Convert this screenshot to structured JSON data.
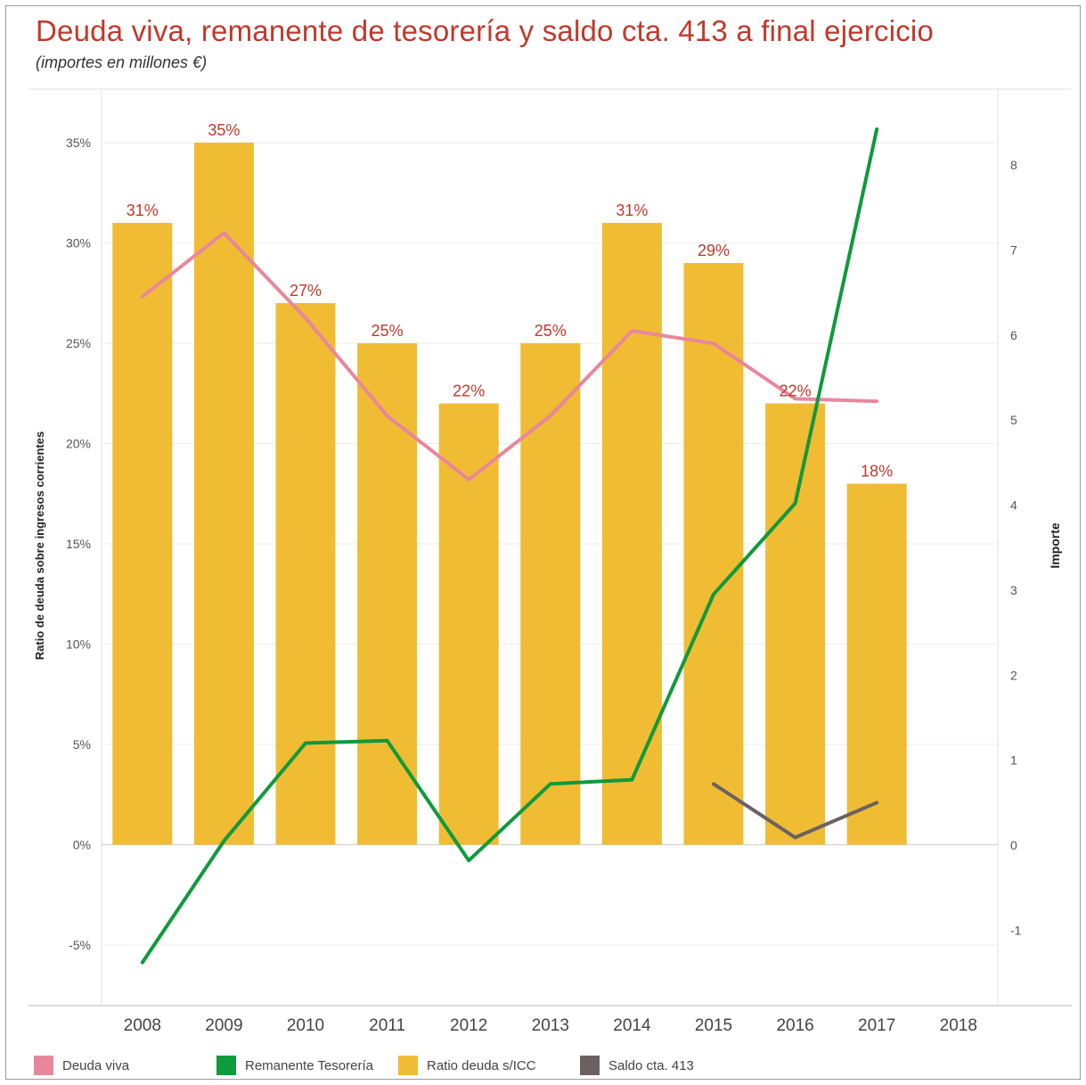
{
  "title": "Deuda viva, remanente de tesorería y saldo cta. 413  a final ejercicio",
  "subtitle": "(importes en millones €)",
  "colors": {
    "bars": "#f0bc33",
    "deuda_viva": "#e8879c",
    "remanente": "#0f9a3c",
    "saldo": "#6b6163",
    "label_red": "#c0392b"
  },
  "legend": [
    {
      "label": "Deuda viva",
      "color": "#e8879c"
    },
    {
      "label": "Remanente Tesorería",
      "color": "#0f9a3c"
    },
    {
      "label": "Ratio deuda s/ICC",
      "color": "#f0bc33"
    },
    {
      "label": "Saldo cta. 413",
      "color": "#6b6163"
    }
  ],
  "chart_data": {
    "type": "bar",
    "categories": [
      "2008",
      "2009",
      "2010",
      "2011",
      "2012",
      "2013",
      "2014",
      "2015",
      "2016",
      "2017",
      "2018"
    ],
    "ylabel_left": "Ratio de deuda sobre ingresos corrientes",
    "ylabel_right": "Importe",
    "left_axis": {
      "ylim": [
        -8,
        37
      ],
      "ticks": [
        -5,
        0,
        5,
        10,
        15,
        20,
        25,
        30,
        35
      ],
      "tick_labels": [
        "-5%",
        "0%",
        "5%",
        "10%",
        "15%",
        "20%",
        "25%",
        "30%",
        "35%"
      ]
    },
    "right_axis": {
      "ylim": [
        -1.9,
        8.7
      ],
      "ticks": [
        -1,
        0,
        1,
        2,
        3,
        4,
        5,
        6,
        7,
        8
      ],
      "tick_labels": [
        "-1",
        "0",
        "1",
        "2",
        "3",
        "4",
        "5",
        "6",
        "7",
        "8"
      ]
    },
    "bars": {
      "name": "Ratio deuda s/ICC",
      "axis": "left",
      "values": [
        31,
        35,
        27,
        25,
        22,
        25,
        31,
        29,
        22,
        18,
        null
      ],
      "labels": [
        "31%",
        "35%",
        "27%",
        "25%",
        "22%",
        "25%",
        "31%",
        "29%",
        "22%",
        "18%",
        ""
      ]
    },
    "series": [
      {
        "name": "Deuda viva",
        "axis": "right",
        "values": [
          6.45,
          7.2,
          6.2,
          5.05,
          4.3,
          5.05,
          6.05,
          5.9,
          5.25,
          5.22,
          null
        ]
      },
      {
        "name": "Remanente Tesorería",
        "axis": "right",
        "values": [
          -1.38,
          0.05,
          1.2,
          1.23,
          -0.18,
          0.72,
          0.77,
          2.95,
          4.02,
          8.42,
          null
        ]
      },
      {
        "name": "Saldo cta. 413",
        "axis": "right",
        "values": [
          null,
          null,
          null,
          null,
          null,
          null,
          null,
          0.72,
          0.09,
          0.5,
          null
        ]
      }
    ],
    "grid": true,
    "legend_position": "bottom"
  }
}
